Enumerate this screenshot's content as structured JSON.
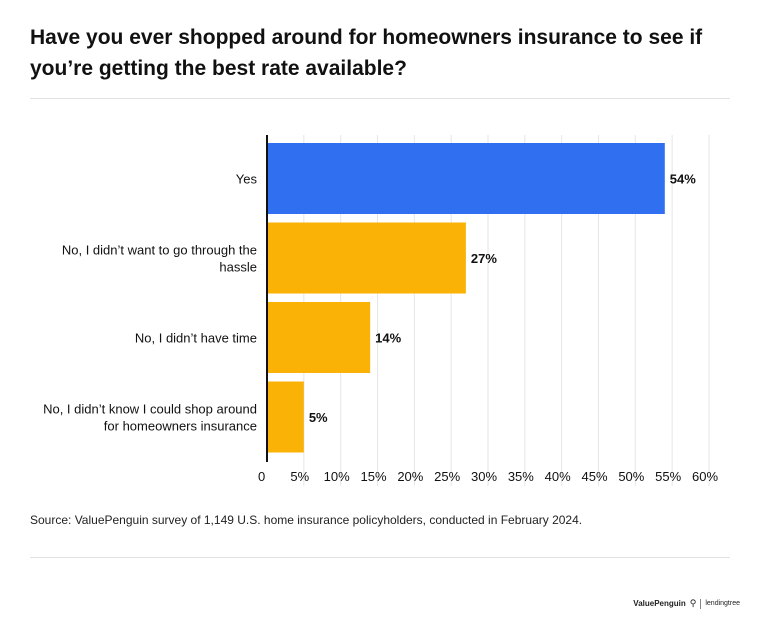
{
  "title": "Have you ever shopped around for homeowners insurance to see if you’re getting the best rate available?",
  "source": "Source: ValuePenguin survey of 1,149 U.S. home insurance policyholders, conducted in February 2024.",
  "footer": {
    "brand_primary": "ValuePenguin",
    "brand_secondary": "lendingtree"
  },
  "colors": {
    "highlight": "#2F6FF0",
    "bar": "#FBB207",
    "axis": "#111111",
    "grid": "#e6e6e6"
  },
  "chart_data": {
    "type": "bar",
    "orientation": "horizontal",
    "categories": [
      [
        "Yes"
      ],
      [
        "No, I didn’t want to go through the",
        "hassle"
      ],
      [
        "No, I didn’t have time"
      ],
      [
        "No, I didn’t know I could shop around",
        "for homeowners insurance"
      ]
    ],
    "values": [
      54,
      27,
      14,
      5
    ],
    "value_labels": [
      "54%",
      "27%",
      "14%",
      "5%"
    ],
    "highlight_index": 0,
    "xlim": [
      0,
      60
    ],
    "x_ticks": [
      0,
      5,
      10,
      15,
      20,
      25,
      30,
      35,
      40,
      45,
      50,
      55,
      60
    ],
    "x_tick_labels": [
      "0",
      "5%",
      "10%",
      "15%",
      "20%",
      "25%",
      "30%",
      "35%",
      "40%",
      "45%",
      "50%",
      "55%",
      "60%"
    ],
    "grid": "vertical",
    "xlabel": "",
    "ylabel": ""
  }
}
